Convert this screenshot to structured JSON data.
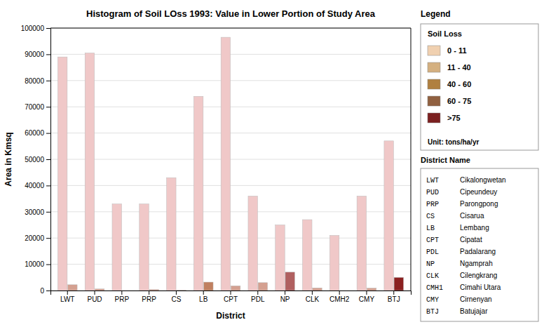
{
  "chart_data": {
    "type": "bar",
    "title": "Histogram of Soil LOss 1993: Value in Lower Portion of Study Area",
    "xlabel": "District",
    "ylabel": "Area in Kmsq",
    "categories": [
      "LWT",
      "PUD",
      "PRP",
      "PRP",
      "CS",
      "LB",
      "CPT",
      "PDL",
      "NP",
      "CLK",
      "CMH2",
      "CMY",
      "BTJ"
    ],
    "series": [
      {
        "color": "#f0c8c8",
        "values": [
          89000,
          90500,
          33000,
          33000,
          43000,
          74000,
          96500,
          36000,
          25000,
          27000,
          21000,
          36000,
          57000
        ]
      },
      {
        "colors": [
          "#d4a090",
          "#d4a090",
          "#d4a090",
          "#d4a090",
          "#d4a090",
          "#c08060",
          "#d4a090",
          "#d4a090",
          "#b06060",
          "#d4a090",
          "#d4a090",
          "#d4a090",
          "#8b2020"
        ],
        "values": [
          2200,
          600,
          0,
          400,
          200,
          3200,
          1800,
          3000,
          7000,
          1000,
          0,
          900,
          5000
        ]
      }
    ],
    "ylim": [
      0,
      100000
    ],
    "yticks": [
      0,
      10000,
      20000,
      30000,
      40000,
      50000,
      60000,
      70000,
      80000,
      90000,
      100000
    ],
    "grid": true,
    "legend_panel": {
      "heading": "Legend",
      "title": "Soil Loss",
      "entries": [
        {
          "label": "0 - 11",
          "color": "#f0d0b0"
        },
        {
          "label": "11 - 40",
          "color": "#d4b080"
        },
        {
          "label": "40 - 60",
          "color": "#b08040"
        },
        {
          "label": "60 - 75",
          "color": "#906040"
        },
        {
          "label": ">75",
          "color": "#7b2020"
        }
      ],
      "unit": "Unit: tons/ha/yr"
    },
    "district_panel": {
      "title": "District Name",
      "rows": [
        [
          "LWT",
          "Cikalongwetan"
        ],
        [
          "PUD",
          "Cipeundeuy"
        ],
        [
          "PRP",
          "Parongpong"
        ],
        [
          "CS",
          "Cisarua"
        ],
        [
          "LB",
          "Lembang"
        ],
        [
          "CPT",
          "Cipatat"
        ],
        [
          "PDL",
          "Padalarang"
        ],
        [
          "NP",
          "Ngamprah"
        ],
        [
          "CLK",
          "Cilengkrang"
        ],
        [
          "CMH1",
          "Cimahi Utara"
        ],
        [
          "CMY",
          "Cirnenyan"
        ],
        [
          "BTJ",
          "Batujajar"
        ]
      ]
    }
  }
}
